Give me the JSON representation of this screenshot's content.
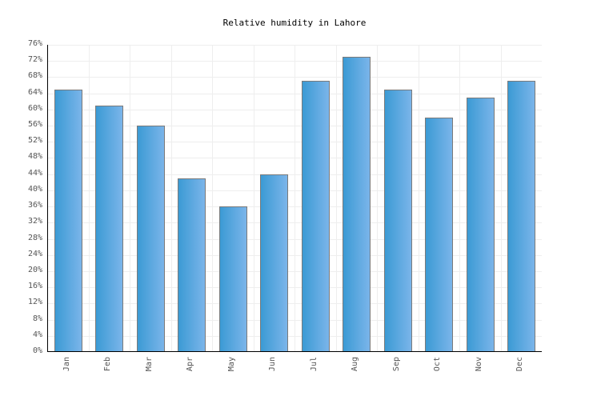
{
  "title": "Relative humidity in Lahore",
  "colors": {
    "bar_left": "#3a9ad4",
    "bar_right": "#7cb5ea",
    "bar_border": "#7a7a7a",
    "grid": "#eeeeee",
    "axis": "#000000",
    "tick_text": "#555555"
  },
  "chart_data": {
    "type": "bar",
    "title": "Relative humidity in Lahore",
    "xlabel": "",
    "ylabel": "",
    "categories": [
      "Jan",
      "Feb",
      "Mar",
      "Apr",
      "May",
      "Jun",
      "Jul",
      "Aug",
      "Sep",
      "Oct",
      "Nov",
      "Dec"
    ],
    "values": [
      65,
      61,
      56,
      43,
      36,
      44,
      67,
      73,
      65,
      58,
      63,
      67
    ],
    "unit": "%",
    "ylim": [
      0,
      76
    ],
    "yticks": [
      "0%",
      "4%",
      "8%",
      "12%",
      "16%",
      "20%",
      "24%",
      "28%",
      "32%",
      "36%",
      "40%",
      "44%",
      "48%",
      "52%",
      "56%",
      "60%",
      "64%",
      "68%",
      "72%",
      "76%"
    ],
    "grid": true,
    "legend": null
  }
}
